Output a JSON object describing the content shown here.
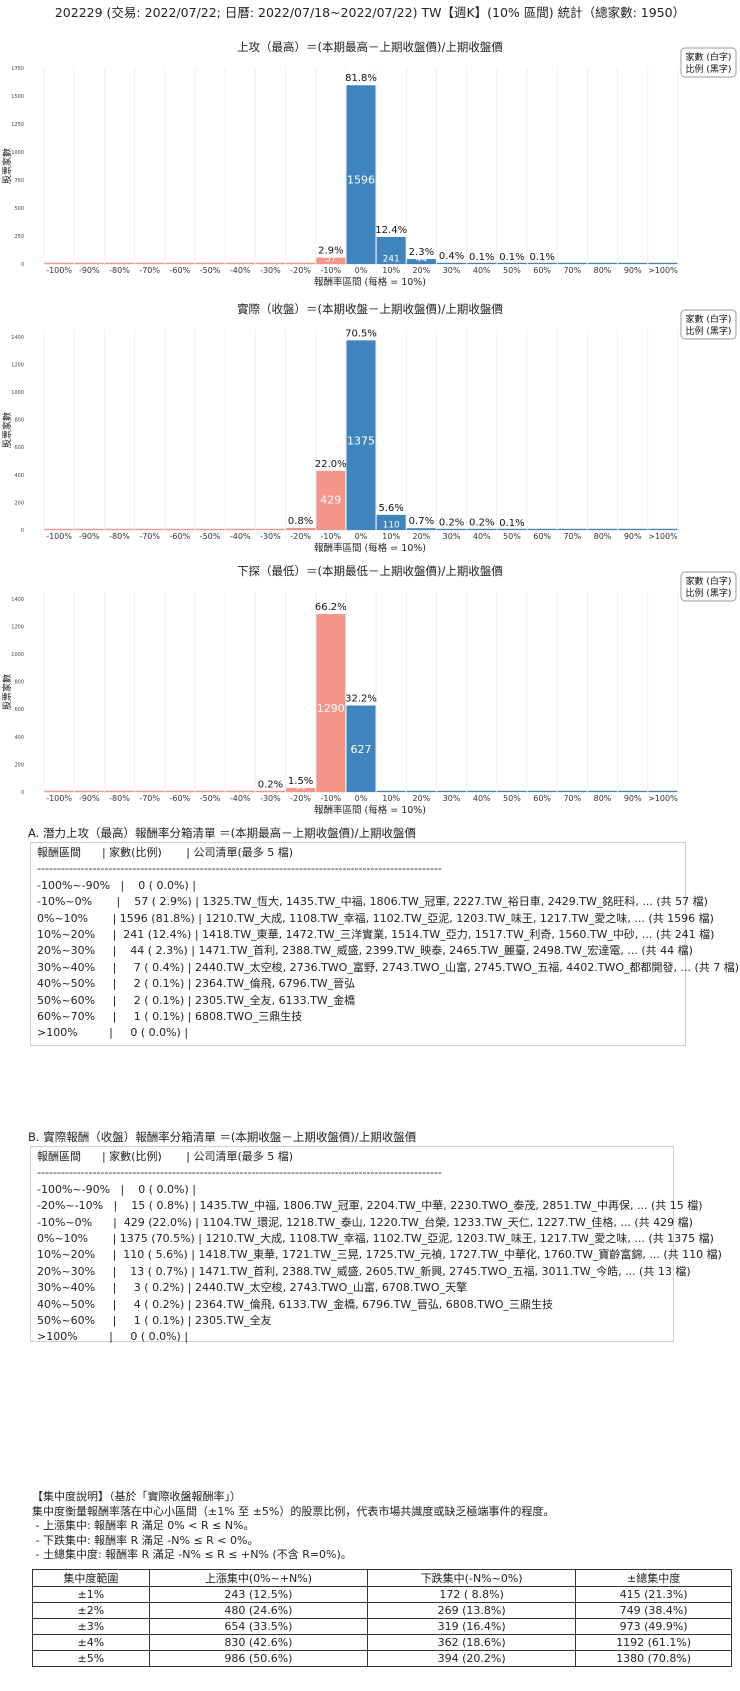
{
  "title": "202229 (交易: 2022/07/22; 日曆: 2022/07/18~2022/07/22) TW【週K】(10% 區間) 統計（總家數: 1950）",
  "legend_lines": [
    "家數 (白字)",
    "比例 (黑字)"
  ],
  "colors": {
    "neg": "#f4958a",
    "pos": "#3f84bd",
    "grid": "#ececec"
  },
  "chart_data": [
    {
      "type": "bar",
      "title": "上攻（最高）＝(本期最高－上期收盤價)/上期收盤價",
      "xlabel": "報酬率區間 (每格 = 10%)",
      "ylabel": "股票家數",
      "categories": [
        "-100%",
        "-90%",
        "-80%",
        "-70%",
        "-60%",
        "-50%",
        "-40%",
        "-30%",
        "-20%",
        "-10%",
        "0%",
        "10%",
        "20%",
        "30%",
        "40%",
        "50%",
        "60%",
        "70%",
        "80%",
        "90%",
        ">100%"
      ],
      "values": [
        0,
        0,
        0,
        0,
        0,
        0,
        0,
        0,
        0,
        57,
        1596,
        241,
        44,
        7,
        2,
        2,
        1,
        0,
        0,
        0,
        0
      ],
      "labels": [
        "",
        "",
        "",
        "",
        "",
        "",
        "",
        "",
        "",
        "2.9%",
        "81.8%",
        "12.4%",
        "2.3%",
        "0.4%",
        "0.1%",
        "0.1%",
        "0.1%",
        "",
        "",
        "",
        ""
      ],
      "ylim": [
        0,
        1750
      ],
      "yticks": [
        0,
        250,
        500,
        750,
        1000,
        1250,
        1500,
        1750
      ],
      "legend": "top-right"
    },
    {
      "type": "bar",
      "title": "實際（收盤）＝(本期收盤－上期收盤價)/上期收盤價",
      "xlabel": "報酬率區間 (每格 = 10%)",
      "ylabel": "股票家數",
      "categories": [
        "-100%",
        "-90%",
        "-80%",
        "-70%",
        "-60%",
        "-50%",
        "-40%",
        "-30%",
        "-20%",
        "-10%",
        "0%",
        "10%",
        "20%",
        "30%",
        "40%",
        "50%",
        "60%",
        "70%",
        "80%",
        "90%",
        ">100%"
      ],
      "values": [
        0,
        0,
        0,
        0,
        0,
        0,
        0,
        0,
        15,
        429,
        1375,
        110,
        13,
        3,
        4,
        1,
        0,
        0,
        0,
        0,
        0
      ],
      "labels": [
        "",
        "",
        "",
        "",
        "",
        "",
        "",
        "",
        "0.8%",
        "22.0%",
        "70.5%",
        "5.6%",
        "0.7%",
        "0.2%",
        "0.2%",
        "0.1%",
        "",
        "",
        "",
        "",
        ""
      ],
      "ylim": [
        0,
        1450
      ],
      "yticks": [
        0,
        200,
        400,
        600,
        800,
        1000,
        1200,
        1400
      ],
      "legend": "top-right"
    },
    {
      "type": "bar",
      "title": "下探（最低）＝(本期最低－上期收盤價)/上期收盤價",
      "xlabel": "報酬率區間 (每格 = 10%)",
      "ylabel": "股票家數",
      "categories": [
        "-100%",
        "-90%",
        "-80%",
        "-70%",
        "-60%",
        "-50%",
        "-40%",
        "-30%",
        "-20%",
        "-10%",
        "0%",
        "10%",
        "20%",
        "30%",
        "40%",
        "50%",
        "60%",
        "70%",
        "80%",
        "90%",
        ">100%"
      ],
      "values": [
        0,
        0,
        0,
        0,
        0,
        0,
        0,
        3,
        30,
        1290,
        627,
        0,
        0,
        0,
        0,
        0,
        0,
        0,
        0,
        0,
        0
      ],
      "labels": [
        "",
        "",
        "",
        "",
        "",
        "",
        "",
        "0.2%",
        "1.5%",
        "66.2%",
        "32.2%",
        "",
        "",
        "",
        "",
        "",
        "",
        "",
        "",
        "",
        ""
      ],
      "ylim": [
        0,
        1450
      ],
      "yticks": [
        0,
        200,
        400,
        600,
        800,
        1000,
        1200,
        1400
      ],
      "legend": "top-right"
    }
  ],
  "list_a": {
    "title": "A. 潛力上攻（最高）報酬率分箱清單 ＝(本期最高－上期收盤價)/上期收盤價",
    "lines": [
      "報酬區間      | 家數(比例)       | 公司清單(最多 5 檔)",
      "------------------------------------------------------------------------------------------------------",
      "-100%~-90%   |    0 ( 0.0%) |",
      "-10%~0%       |    57 ( 2.9%) | 1325.TW_恆大, 1435.TW_中福, 1806.TW_冠軍, 2227.TW_裕日車, 2429.TW_銘旺科, ... (共 57 檔)",
      "0%~10%       | 1596 (81.8%) | 1210.TW_大成, 1108.TW_幸福, 1102.TW_亞泥, 1203.TW_味王, 1217.TW_愛之味, ... (共 1596 檔)",
      "10%~20%     |  241 (12.4%) | 1418.TW_東華, 1472.TW_三洋實業, 1514.TW_亞力, 1517.TW_利奇, 1560.TW_中砂, ... (共 241 檔)",
      "20%~30%     |    44 ( 2.3%) | 1471.TW_首利, 2388.TW_威盛, 2399.TW_映泰, 2465.TW_麗臺, 2498.TW_宏達電, ... (共 44 檔)",
      "30%~40%     |     7 ( 0.4%) | 2440.TW_太空梭, 2736.TWO_富野, 2743.TWO_山富, 2745.TWO_五福, 4402.TWO_都都開發, ... (共 7 檔)",
      "40%~50%     |     2 ( 0.1%) | 2364.TW_倫飛, 6796.TW_晉弘",
      "50%~60%     |     2 ( 0.1%) | 2305.TW_全友, 6133.TW_金橋",
      "60%~70%     |     1 ( 0.1%) | 6808.TWO_三鼎生技",
      ">100%         |     0 ( 0.0%) |"
    ]
  },
  "list_b": {
    "title": "B. 實際報酬（收盤）報酬率分箱清單 ＝(本期收盤－上期收盤價)/上期收盤價",
    "lines": [
      "報酬區間      | 家數(比例)       | 公司清單(最多 5 檔)",
      "------------------------------------------------------------------------------------------------------",
      "-100%~-90%   |    0 ( 0.0%) |",
      "-20%~-10%   |    15 ( 0.8%) | 1435.TW_中福, 1806.TW_冠軍, 2204.TW_中華, 2230.TWO_泰茂, 2851.TW_中再保, ... (共 15 檔)",
      "-10%~0%      |  429 (22.0%) | 1104.TW_環泥, 1218.TW_泰山, 1220.TW_台榮, 1233.TW_天仁, 1227.TW_佳格, ... (共 429 檔)",
      "0%~10%       | 1375 (70.5%) | 1210.TW_大成, 1108.TW_幸福, 1102.TW_亞泥, 1203.TW_味王, 1217.TW_愛之味, ... (共 1375 檔)",
      "10%~20%     |  110 ( 5.6%) | 1418.TW_東華, 1721.TW_三晃, 1725.TW_元禎, 1727.TW_中華化, 1760.TW_寶齡富錦, ... (共 110 檔)",
      "20%~30%     |    13 ( 0.7%) | 1471.TW_首利, 2388.TW_威盛, 2605.TW_新興, 2745.TWO_五福, 3011.TW_今皓, ... (共 13 檔)",
      "30%~40%     |     3 ( 0.2%) | 2440.TW_太空梭, 2743.TWO_山富, 6708.TWO_天擎",
      "40%~50%     |     4 ( 0.2%) | 2364.TW_倫飛, 6133.TW_金橋, 6796.TW_晉弘, 6808.TWO_三鼎生技",
      "50%~60%     |     1 ( 0.1%) | 2305.TW_全友",
      ">100%         |     0 ( 0.0%) |"
    ]
  },
  "concentration": {
    "lines": [
      "【集中度說明】（基於「實際收盤報酬率」）",
      "集中度衡量報酬率落在中心小區間（±1% 至 ±5%）的股票比例，代表市場共識度或缺乏極端事件的程度。",
      " - 上漲集中: 報酬率 R 滿足 0% < R ≤ N%。",
      " - 下跌集中: 報酬率 R 滿足 -N% ≤ R < 0%。",
      " - 土總集中度: 報酬率 R 滿足 -N% ≤ R ≤ +N% (不含 R=0%)。"
    ],
    "headers": [
      "集中度範圍",
      "上漲集中(0%~+N%)",
      "下跌集中(-N%~0%)",
      "±總集中度"
    ],
    "rows": [
      [
        "±1%",
        "243 (12.5%)",
        "172 ( 8.8%)",
        "415 (21.3%)"
      ],
      [
        "±2%",
        "480 (24.6%)",
        "269 (13.8%)",
        "749 (38.4%)"
      ],
      [
        "±3%",
        "654 (33.5%)",
        "319 (16.4%)",
        "973 (49.9%)"
      ],
      [
        "±4%",
        "830 (42.6%)",
        "362 (18.6%)",
        "1192 (61.1%)"
      ],
      [
        "±5%",
        "986 (50.6%)",
        "394 (20.2%)",
        "1380 (70.8%)"
      ]
    ]
  }
}
